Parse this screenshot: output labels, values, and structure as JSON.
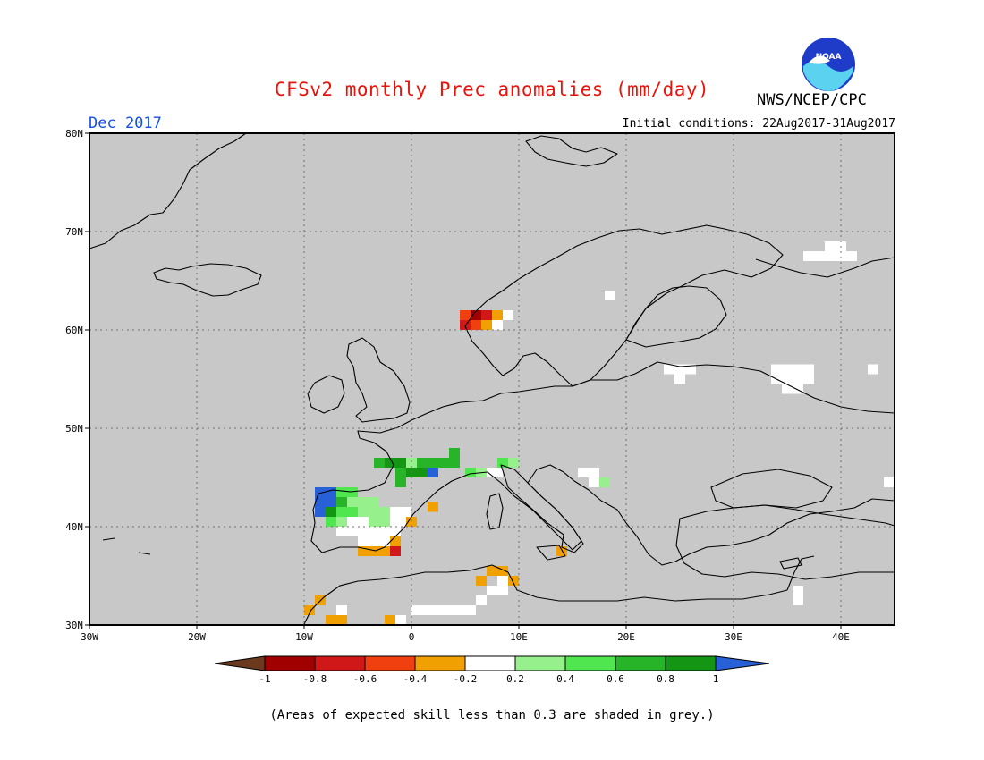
{
  "header": {
    "title": "CFSv2 monthly Prec anomalies (mm/day)",
    "agency": "NWS/NCEP/CPC",
    "logo_text": "NOAA",
    "month": "Dec 2017",
    "initial_conditions": "Initial conditions: 22Aug2017-31Aug2017"
  },
  "map": {
    "projection": "lat-lon",
    "lon_range": [
      -30,
      45
    ],
    "lat_range": [
      30,
      80
    ],
    "background_color": "#c8c8c8",
    "lon_ticks": [
      {
        "value": -30,
        "label": "30W"
      },
      {
        "value": -20,
        "label": "20W"
      },
      {
        "value": -10,
        "label": "10W"
      },
      {
        "value": 0,
        "label": "0"
      },
      {
        "value": 10,
        "label": "10E"
      },
      {
        "value": 20,
        "label": "20E"
      },
      {
        "value": 30,
        "label": "30E"
      },
      {
        "value": 40,
        "label": "40E"
      }
    ],
    "lat_ticks": [
      {
        "value": 30,
        "label": "30N"
      },
      {
        "value": 40,
        "label": "40N"
      },
      {
        "value": 50,
        "label": "50N"
      },
      {
        "value": 60,
        "label": "60N"
      },
      {
        "value": 70,
        "label": "70N"
      },
      {
        "value": 80,
        "label": "80N"
      }
    ],
    "cells": [
      {
        "lon": 5.0,
        "lat": 61.5,
        "cls": -0.5
      },
      {
        "lon": 6.0,
        "lat": 61.5,
        "cls": -0.9
      },
      {
        "lon": 7.0,
        "lat": 61.5,
        "cls": -0.7
      },
      {
        "lon": 8.0,
        "lat": 61.5,
        "cls": -0.3
      },
      {
        "lon": 9.0,
        "lat": 61.5,
        "cls": 0
      },
      {
        "lon": 5.0,
        "lat": 60.5,
        "cls": -0.7
      },
      {
        "lon": 6.0,
        "lat": 60.5,
        "cls": -0.5
      },
      {
        "lon": 7.0,
        "lat": 60.5,
        "cls": -0.3
      },
      {
        "lon": 8.0,
        "lat": 60.5,
        "cls": 0
      },
      {
        "lon": 18.5,
        "lat": 63.5,
        "cls": 0
      },
      {
        "lon": 37.0,
        "lat": 67.5,
        "cls": 0
      },
      {
        "lon": 38.0,
        "lat": 67.5,
        "cls": 0
      },
      {
        "lon": 39.0,
        "lat": 67.5,
        "cls": 0
      },
      {
        "lon": 40.0,
        "lat": 67.5,
        "cls": 0
      },
      {
        "lon": 41.0,
        "lat": 67.5,
        "cls": 0
      },
      {
        "lon": 39.0,
        "lat": 68.5,
        "cls": 0
      },
      {
        "lon": 40.0,
        "lat": 68.5,
        "cls": 0
      },
      {
        "lon": 24.0,
        "lat": 56.0,
        "cls": 0
      },
      {
        "lon": 25.0,
        "lat": 56.0,
        "cls": 0
      },
      {
        "lon": 26.0,
        "lat": 56.0,
        "cls": 0
      },
      {
        "lon": 25.0,
        "lat": 55.0,
        "cls": 0
      },
      {
        "lon": 34.0,
        "lat": 56.0,
        "cls": 0
      },
      {
        "lon": 35.0,
        "lat": 56.0,
        "cls": 0
      },
      {
        "lon": 36.0,
        "lat": 56.0,
        "cls": 0
      },
      {
        "lon": 37.0,
        "lat": 56.0,
        "cls": 0
      },
      {
        "lon": 34.0,
        "lat": 55.0,
        "cls": 0
      },
      {
        "lon": 35.0,
        "lat": 55.0,
        "cls": 0
      },
      {
        "lon": 36.0,
        "lat": 55.0,
        "cls": 0
      },
      {
        "lon": 37.0,
        "lat": 55.0,
        "cls": 0
      },
      {
        "lon": 35.0,
        "lat": 54.0,
        "cls": 0
      },
      {
        "lon": 36.0,
        "lat": 54.0,
        "cls": 0
      },
      {
        "lon": 43.0,
        "lat": 56.0,
        "cls": 0
      },
      {
        "lon": 4.0,
        "lat": 47.5,
        "cls": 0.7
      },
      {
        "lon": -3.0,
        "lat": 46.5,
        "cls": 0.7
      },
      {
        "lon": -2.0,
        "lat": 46.5,
        "cls": 0.9
      },
      {
        "lon": -1.0,
        "lat": 46.5,
        "cls": 0.9
      },
      {
        "lon": 0.0,
        "lat": 46.5,
        "cls": 0.3
      },
      {
        "lon": 1.0,
        "lat": 46.5,
        "cls": 0.7
      },
      {
        "lon": 2.0,
        "lat": 46.5,
        "cls": 0.7
      },
      {
        "lon": 3.0,
        "lat": 46.5,
        "cls": 0.7
      },
      {
        "lon": 4.0,
        "lat": 46.5,
        "cls": 0.7
      },
      {
        "lon": -1.0,
        "lat": 45.5,
        "cls": 0.7
      },
      {
        "lon": 0.0,
        "lat": 45.5,
        "cls": 0.9
      },
      {
        "lon": 1.0,
        "lat": 45.5,
        "cls": 0.9
      },
      {
        "lon": 2.0,
        "lat": 45.5,
        "cls": 1.1
      },
      {
        "lon": -1.0,
        "lat": 44.5,
        "cls": 0.7
      },
      {
        "lon": 5.5,
        "lat": 45.5,
        "cls": 0.5
      },
      {
        "lon": 6.5,
        "lat": 45.5,
        "cls": 0.3
      },
      {
        "lon": 7.5,
        "lat": 45.5,
        "cls": 0
      },
      {
        "lon": 8.5,
        "lat": 46.5,
        "cls": 0.5
      },
      {
        "lon": 9.5,
        "lat": 46.5,
        "cls": 0.3
      },
      {
        "lon": 8.0,
        "lat": 45.5,
        "cls": 0
      },
      {
        "lon": 16.0,
        "lat": 45.5,
        "cls": 0
      },
      {
        "lon": 17.0,
        "lat": 45.5,
        "cls": 0
      },
      {
        "lon": 17.0,
        "lat": 44.5,
        "cls": 0
      },
      {
        "lon": 18.0,
        "lat": 44.5,
        "cls": 0.3
      },
      {
        "lon": 44.5,
        "lat": 44.5,
        "cls": 0
      },
      {
        "lon": -8.5,
        "lat": 43.5,
        "cls": 1.1
      },
      {
        "lon": -7.5,
        "lat": 43.5,
        "cls": 1.1
      },
      {
        "lon": -6.5,
        "lat": 43.5,
        "cls": 0.5
      },
      {
        "lon": -5.5,
        "lat": 43.5,
        "cls": 0.5
      },
      {
        "lon": -8.5,
        "lat": 42.5,
        "cls": 1.1
      },
      {
        "lon": -7.5,
        "lat": 42.5,
        "cls": 1.1
      },
      {
        "lon": -6.5,
        "lat": 42.5,
        "cls": 0.7
      },
      {
        "lon": -5.5,
        "lat": 42.5,
        "cls": 0.3
      },
      {
        "lon": -4.5,
        "lat": 42.5,
        "cls": 0.3
      },
      {
        "lon": -3.5,
        "lat": 42.5,
        "cls": 0.3
      },
      {
        "lon": -8.5,
        "lat": 41.5,
        "cls": 1.1
      },
      {
        "lon": -7.5,
        "lat": 41.5,
        "cls": 0.9
      },
      {
        "lon": -6.5,
        "lat": 41.5,
        "cls": 0.5
      },
      {
        "lon": -5.5,
        "lat": 41.5,
        "cls": 0.5
      },
      {
        "lon": -4.5,
        "lat": 41.5,
        "cls": 0.3
      },
      {
        "lon": -3.5,
        "lat": 41.5,
        "cls": 0.3
      },
      {
        "lon": -2.5,
        "lat": 41.5,
        "cls": 0.3
      },
      {
        "lon": -1.5,
        "lat": 41.5,
        "cls": 0
      },
      {
        "lon": -0.5,
        "lat": 41.5,
        "cls": 0
      },
      {
        "lon": -7.5,
        "lat": 40.5,
        "cls": 0.5
      },
      {
        "lon": -6.5,
        "lat": 40.5,
        "cls": 0.3
      },
      {
        "lon": -5.5,
        "lat": 40.5,
        "cls": 0
      },
      {
        "lon": -4.5,
        "lat": 40.5,
        "cls": 0
      },
      {
        "lon": -3.5,
        "lat": 40.5,
        "cls": 0.3
      },
      {
        "lon": -2.5,
        "lat": 40.5,
        "cls": 0.3
      },
      {
        "lon": -1.5,
        "lat": 40.5,
        "cls": 0
      },
      {
        "lon": -0.5,
        "lat": 40.5,
        "cls": 0
      },
      {
        "lon": 0.0,
        "lat": 40.5,
        "cls": -0.3
      },
      {
        "lon": 2.0,
        "lat": 42.0,
        "cls": -0.3
      },
      {
        "lon": -6.5,
        "lat": 39.5,
        "cls": 0
      },
      {
        "lon": -5.5,
        "lat": 39.5,
        "cls": 0
      },
      {
        "lon": -4.5,
        "lat": 39.5,
        "cls": 0
      },
      {
        "lon": -3.5,
        "lat": 39.5,
        "cls": 0
      },
      {
        "lon": -2.5,
        "lat": 39.5,
        "cls": 0
      },
      {
        "lon": -1.5,
        "lat": 39.5,
        "cls": 0
      },
      {
        "lon": -4.5,
        "lat": 38.5,
        "cls": 0
      },
      {
        "lon": -3.5,
        "lat": 38.5,
        "cls": 0
      },
      {
        "lon": -2.5,
        "lat": 38.5,
        "cls": 0
      },
      {
        "lon": -1.5,
        "lat": 38.5,
        "cls": -0.3
      },
      {
        "lon": -4.5,
        "lat": 37.5,
        "cls": -0.3
      },
      {
        "lon": -3.5,
        "lat": 37.5,
        "cls": -0.3
      },
      {
        "lon": -2.5,
        "lat": 37.5,
        "cls": -0.3
      },
      {
        "lon": -1.5,
        "lat": 37.5,
        "cls": -0.7
      },
      {
        "lon": 14.0,
        "lat": 37.5,
        "cls": -0.3
      },
      {
        "lon": 7.5,
        "lat": 35.5,
        "cls": -0.3
      },
      {
        "lon": 8.5,
        "lat": 35.5,
        "cls": -0.3
      },
      {
        "lon": 6.5,
        "lat": 34.5,
        "cls": -0.3
      },
      {
        "lon": 8.5,
        "lat": 34.5,
        "cls": 0
      },
      {
        "lon": 9.5,
        "lat": 34.5,
        "cls": -0.3
      },
      {
        "lon": 7.5,
        "lat": 33.5,
        "cls": 0
      },
      {
        "lon": 8.5,
        "lat": 33.5,
        "cls": 0
      },
      {
        "lon": 6.5,
        "lat": 32.5,
        "cls": 0
      },
      {
        "lon": 5.5,
        "lat": 31.5,
        "cls": 0
      },
      {
        "lon": 4.5,
        "lat": 31.5,
        "cls": 0
      },
      {
        "lon": 3.5,
        "lat": 31.5,
        "cls": 0
      },
      {
        "lon": 2.5,
        "lat": 31.5,
        "cls": 0
      },
      {
        "lon": 1.5,
        "lat": 31.5,
        "cls": 0
      },
      {
        "lon": 0.5,
        "lat": 31.5,
        "cls": 0
      },
      {
        "lon": -8.5,
        "lat": 32.5,
        "cls": -0.3
      },
      {
        "lon": -9.5,
        "lat": 31.5,
        "cls": -0.3
      },
      {
        "lon": -6.5,
        "lat": 31.5,
        "cls": 0
      },
      {
        "lon": -7.5,
        "lat": 30.5,
        "cls": -0.3
      },
      {
        "lon": -6.5,
        "lat": 30.5,
        "cls": -0.3
      },
      {
        "lon": -2.0,
        "lat": 30.5,
        "cls": -0.3
      },
      {
        "lon": -1.0,
        "lat": 30.5,
        "cls": 0
      },
      {
        "lon": 36.0,
        "lat": 33.5,
        "cls": 0
      },
      {
        "lon": 36.0,
        "lat": 32.5,
        "cls": 0
      }
    ],
    "land_color": "#000000"
  },
  "legend": {
    "colors": [
      "#6b3a1e",
      "#a00000",
      "#d01818",
      "#f04010",
      "#f0a000",
      "#ffffff",
      "#96f08c",
      "#50e650",
      "#28b428",
      "#149614",
      "#2860d8"
    ],
    "labels": [
      "-1",
      "-0.8",
      "-0.6",
      "-0.4",
      "-0.2",
      "0.2",
      "0.4",
      "0.6",
      "0.8",
      "1"
    ]
  },
  "footnote": "(Areas of expected skill less than 0.3 are shaded in grey.)"
}
